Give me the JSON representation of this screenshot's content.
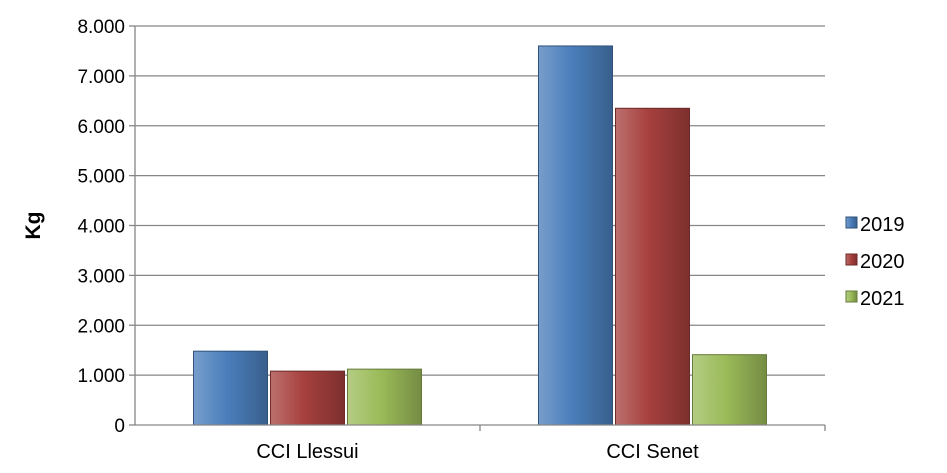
{
  "chart_data": {
    "type": "bar",
    "categories": [
      "CCI Llessui",
      "CCI Senet"
    ],
    "series": [
      {
        "name": "2019",
        "values": [
          1480,
          7600
        ],
        "color": "#4A7EBB"
      },
      {
        "name": "2020",
        "values": [
          1080,
          6350
        ],
        "color": "#A6403D"
      },
      {
        "name": "2021",
        "values": [
          1120,
          1410
        ],
        "color": "#9BBB59"
      }
    ],
    "ylabel": "Kg",
    "ylim": [
      0,
      8000
    ],
    "yticks": [
      {
        "value": 0,
        "label": "0"
      },
      {
        "value": 1000,
        "label": "1.000"
      },
      {
        "value": 2000,
        "label": "2.000"
      },
      {
        "value": 3000,
        "label": "3.000"
      },
      {
        "value": 4000,
        "label": "4.000"
      },
      {
        "value": 5000,
        "label": "5.000"
      },
      {
        "value": 6000,
        "label": "6.000"
      },
      {
        "value": 7000,
        "label": "7.000"
      },
      {
        "value": 8000,
        "label": "8.000"
      }
    ],
    "grid": true,
    "legend": "right"
  }
}
